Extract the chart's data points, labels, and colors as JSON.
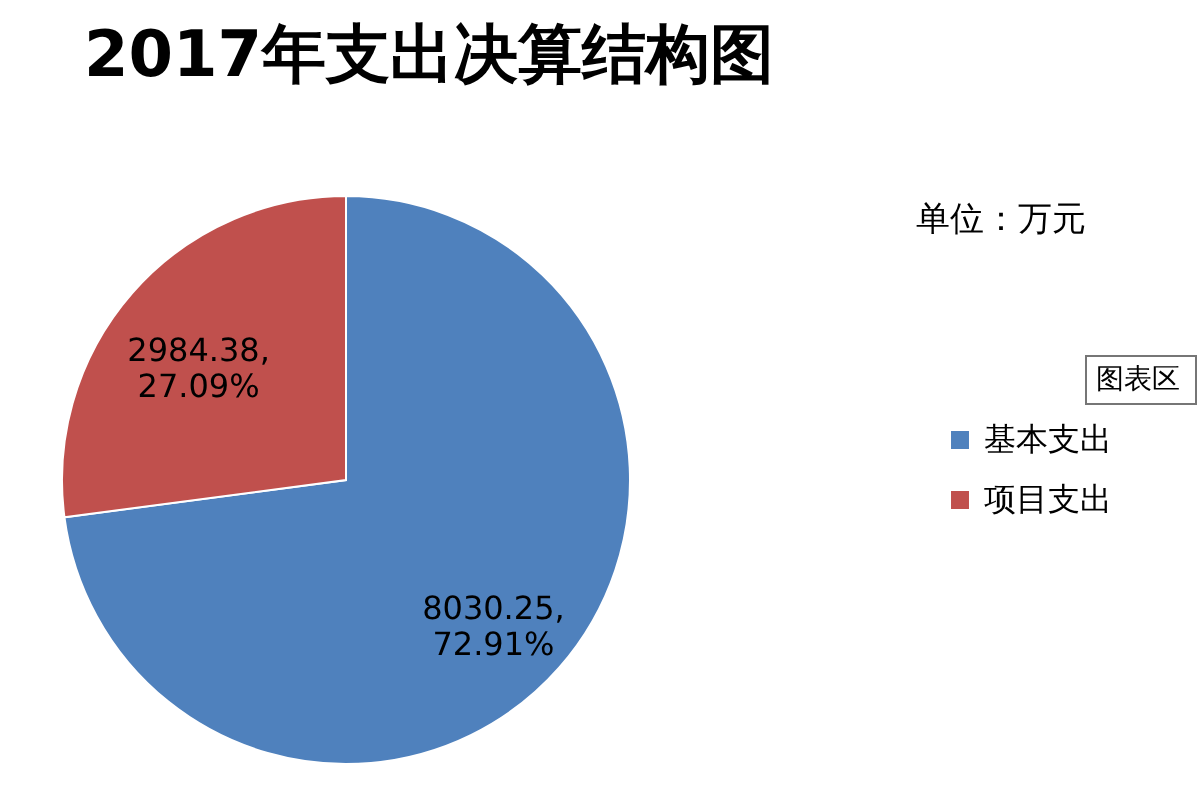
{
  "chart_data": {
    "type": "pie",
    "title": "2017年支出决算结构图",
    "categories": [
      "基本支出",
      "项目支出"
    ],
    "values": [
      8030.25,
      2984.38
    ],
    "colors": [
      "#4f81bd",
      "#c0504d"
    ],
    "value_labels": [
      "8030.25,\n72.91%",
      "2984.38,\n27.09%"
    ],
    "legend": "right",
    "annotations": [
      "单位：万元",
      "图表区"
    ]
  }
}
